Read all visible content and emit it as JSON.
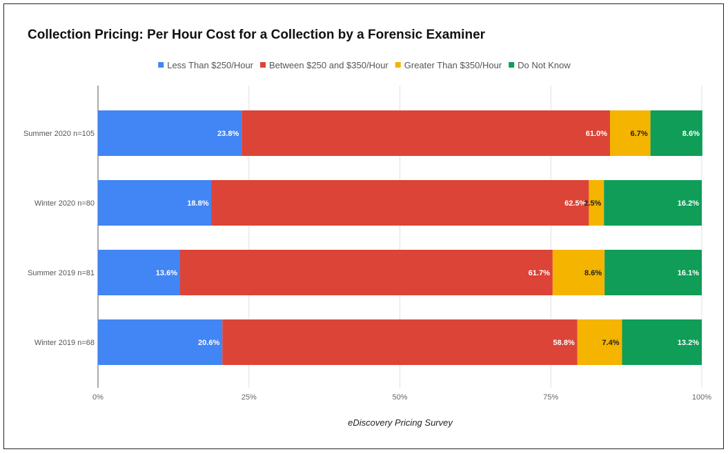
{
  "chart_data": {
    "type": "bar",
    "orientation": "horizontal",
    "stacked": "percent",
    "title": "Collection Pricing: Per Hour Cost for a Collection by a Forensic Examiner",
    "xlabel": "eDiscovery Pricing Survey",
    "ylabel": "",
    "xlim": [
      0,
      100
    ],
    "x_ticks": [
      "0%",
      "25%",
      "50%",
      "75%",
      "100%"
    ],
    "x_tick_values": [
      0,
      25,
      50,
      75,
      100
    ],
    "grid": true,
    "legend_position": "top-center",
    "categories": [
      "Summer 2020 n=105",
      "Winter 2020 n=80",
      "Summer 2019 n=81",
      "Winter 2019 n=68"
    ],
    "series": [
      {
        "name": "Less Than $250/Hour",
        "color": "#4285f4",
        "label_color": "#ffffff",
        "values": [
          23.8,
          18.8,
          13.6,
          20.6
        ],
        "labels": [
          "23.8%",
          "18.8%",
          "13.6%",
          "20.6%"
        ]
      },
      {
        "name": "Between $250 and $350/Hour",
        "color": "#db4437",
        "label_color": "#ffffff",
        "values": [
          61.0,
          62.5,
          61.7,
          58.8
        ],
        "labels": [
          "61.0%",
          "62.5%",
          "61.7%",
          "58.8%"
        ]
      },
      {
        "name": "Greater Than $350/Hour",
        "color": "#f4b400",
        "label_color": "#222222",
        "values": [
          6.7,
          2.5,
          8.6,
          7.4
        ],
        "labels": [
          "6.7%",
          "2.5%",
          "8.6%",
          "7.4%"
        ]
      },
      {
        "name": "Do Not Know",
        "color": "#0f9d58",
        "label_color": "#ffffff",
        "values": [
          8.6,
          16.2,
          16.1,
          13.2
        ],
        "labels": [
          "8.6%",
          "16.2%",
          "16.1%",
          "13.2%"
        ]
      }
    ]
  }
}
